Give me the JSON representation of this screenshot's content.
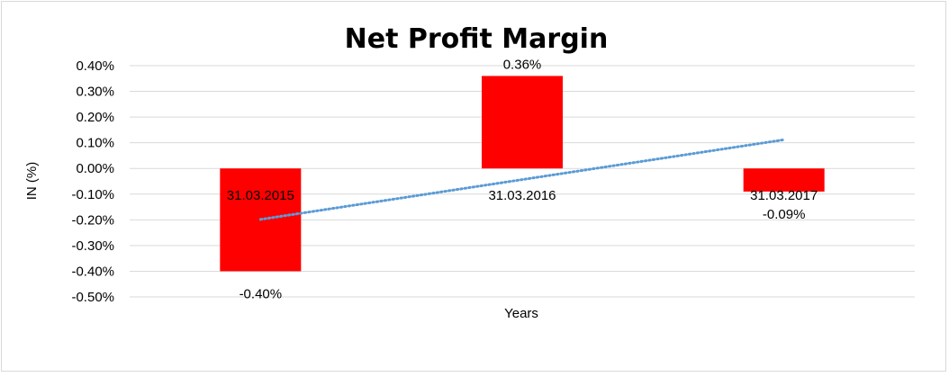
{
  "chart_data": {
    "type": "bar",
    "title": "Net Profit Margin",
    "xlabel": "Years",
    "ylabel": "IN (%)",
    "categories": [
      "31.03.2015",
      "31.03.2016",
      "31.03.2017"
    ],
    "values": [
      -0.4,
      0.36,
      -0.09
    ],
    "data_labels": [
      "-0.40%",
      "0.36%",
      "-0.09%"
    ],
    "ylim": [
      -0.5,
      0.4
    ],
    "yticks": [
      0.4,
      0.3,
      0.2,
      0.1,
      0.0,
      -0.1,
      -0.2,
      -0.3,
      -0.4,
      -0.5
    ],
    "ytick_labels": [
      "0.40%",
      "0.30%",
      "0.20%",
      "0.10%",
      "0.00%",
      "-0.10%",
      "-0.20%",
      "-0.30%",
      "-0.40%",
      "-0.50%"
    ],
    "grid": true,
    "legend": "none",
    "trendline": {
      "type": "linear",
      "style": "dotted"
    },
    "colors": {
      "bar": "#ff0000",
      "trendline": "#5b9bd5",
      "grid": "#d9d9d9"
    }
  }
}
